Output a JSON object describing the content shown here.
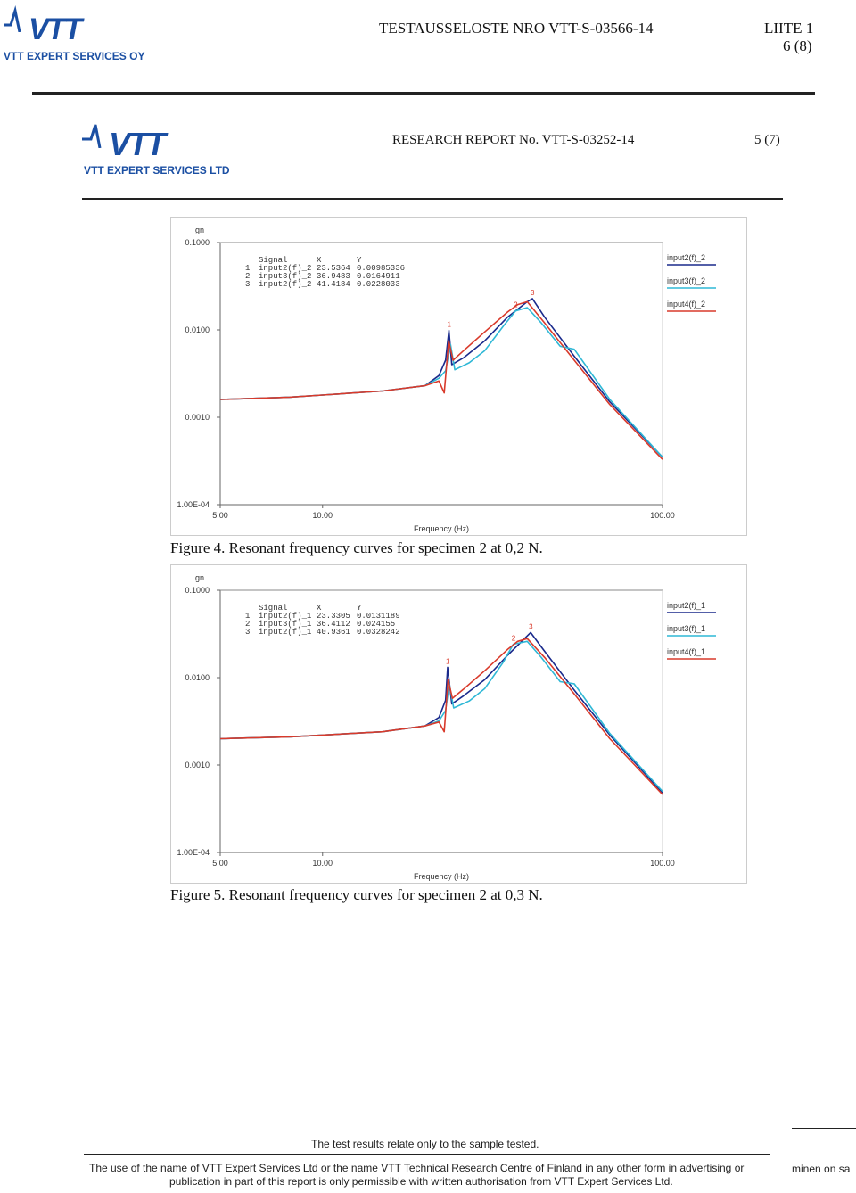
{
  "outer_header": {
    "logo_text": "VTT",
    "logo_sub": "VTT EXPERT SERVICES OY",
    "title": "TESTAUSSELOSTE NRO VTT-S-03566-14",
    "appendix": "LIITE 1",
    "page": "6 (8)"
  },
  "inner_header": {
    "logo_text": "VTT",
    "logo_sub": "VTT EXPERT SERVICES LTD",
    "title": "RESEARCH REPORT No. VTT-S-03252-14",
    "page": "5 (7)"
  },
  "colors": {
    "brand": "#1b4fa3",
    "series_blue": "#1a2a8c",
    "series_cyan": "#2fb8d6",
    "series_red": "#d93a2b"
  },
  "chart_data": [
    {
      "type": "line",
      "ylabel": "gn",
      "xlabel": "Frequency (Hz)",
      "x_scale": "log",
      "y_scale": "log",
      "xlim": [
        5,
        100
      ],
      "ylim": [
        0.0001,
        0.1
      ],
      "x_ticks": [
        "5.00",
        "10.00",
        "100.00"
      ],
      "y_ticks": [
        "0.1000",
        "0.0100",
        "0.0010",
        "1.00E-04"
      ],
      "cursor_table": {
        "headers": [
          "Signal",
          "X",
          "Y"
        ],
        "rows": [
          {
            "n": "1",
            "signal": "input2(f)_2",
            "x": "23.5364",
            "y": "0.00985336"
          },
          {
            "n": "2",
            "signal": "input3(f)_2",
            "x": "36.9483",
            "y": "0.0164911"
          },
          {
            "n": "3",
            "signal": "input2(f)_2",
            "x": "41.4184",
            "y": "0.0228033"
          }
        ]
      },
      "series": [
        {
          "name": "input2(f)_2",
          "color": "#1a2a8c",
          "x": [
            5,
            8,
            10,
            15,
            20,
            22,
            23,
            23.5364,
            24,
            26,
            30,
            35,
            40,
            41.4184,
            45,
            55,
            70,
            100
          ],
          "y": [
            0.0016,
            0.0017,
            0.0018,
            0.002,
            0.0023,
            0.003,
            0.0045,
            0.00985336,
            0.004,
            0.0048,
            0.0075,
            0.014,
            0.021,
            0.0228033,
            0.014,
            0.005,
            0.0015,
            0.00035
          ]
        },
        {
          "name": "input3(f)_2",
          "color": "#2fb8d6",
          "x": [
            5,
            8,
            10,
            15,
            20,
            22,
            23,
            23.8,
            24.5,
            27,
            30,
            34,
            36.9483,
            40,
            44,
            50,
            55,
            70,
            100
          ],
          "y": [
            0.0016,
            0.0017,
            0.0018,
            0.002,
            0.0023,
            0.0028,
            0.0034,
            0.0068,
            0.0035,
            0.0042,
            0.0058,
            0.011,
            0.0164911,
            0.018,
            0.012,
            0.0065,
            0.006,
            0.0016,
            0.00035
          ]
        },
        {
          "name": "input4(f)_2",
          "color": "#d93a2b",
          "x": [
            5,
            8,
            10,
            15,
            20,
            22,
            22.8,
            23.5,
            24.2,
            26,
            30,
            35,
            37.5,
            40,
            45,
            55,
            70,
            100
          ],
          "y": [
            0.0016,
            0.0017,
            0.0018,
            0.002,
            0.0023,
            0.0026,
            0.0019,
            0.0075,
            0.0045,
            0.0058,
            0.0095,
            0.016,
            0.0195,
            0.021,
            0.012,
            0.0045,
            0.0014,
            0.00033
          ]
        }
      ],
      "peak_labels": [
        {
          "text": "1",
          "x": 23.5364,
          "y": 0.00985336
        },
        {
          "text": "2",
          "x": 36.9483,
          "y": 0.0164911
        },
        {
          "text": "3",
          "x": 41.4184,
          "y": 0.0228033
        }
      ],
      "caption": "Figure 4. Resonant frequency curves for specimen 2 at 0,2 N."
    },
    {
      "type": "line",
      "ylabel": "gn",
      "xlabel": "Frequency (Hz)",
      "x_scale": "log",
      "y_scale": "log",
      "xlim": [
        5,
        100
      ],
      "ylim": [
        0.0001,
        0.1
      ],
      "x_ticks": [
        "5.00",
        "10.00",
        "100.00"
      ],
      "y_ticks": [
        "0.1000",
        "0.0100",
        "0.0010",
        "1.00E-04"
      ],
      "cursor_table": {
        "headers": [
          "Signal",
          "X",
          "Y"
        ],
        "rows": [
          {
            "n": "1",
            "signal": "input2(f)_1",
            "x": "23.3305",
            "y": "0.0131189"
          },
          {
            "n": "2",
            "signal": "input3(f)_1",
            "x": "36.4112",
            "y": "0.024155"
          },
          {
            "n": "3",
            "signal": "input2(f)_1",
            "x": "40.9361",
            "y": "0.0328242"
          }
        ]
      },
      "series": [
        {
          "name": "input2(f)_1",
          "color": "#1a2a8c",
          "x": [
            5,
            8,
            10,
            15,
            20,
            22,
            23,
            23.3305,
            24,
            26,
            30,
            35,
            40,
            40.9361,
            45,
            55,
            70,
            100
          ],
          "y": [
            0.002,
            0.0021,
            0.0022,
            0.0024,
            0.0028,
            0.0035,
            0.0055,
            0.0131189,
            0.005,
            0.0062,
            0.0095,
            0.018,
            0.03,
            0.0328242,
            0.02,
            0.0072,
            0.0022,
            0.00048
          ]
        },
        {
          "name": "input3(f)_1",
          "color": "#2fb8d6",
          "x": [
            5,
            8,
            10,
            15,
            20,
            22,
            23,
            23.6,
            24.3,
            27,
            30,
            34,
            36.4112,
            40,
            44,
            50,
            55,
            70,
            100
          ],
          "y": [
            0.002,
            0.0021,
            0.0022,
            0.0024,
            0.0028,
            0.0032,
            0.0042,
            0.0085,
            0.0045,
            0.0054,
            0.0075,
            0.015,
            0.024155,
            0.026,
            0.017,
            0.009,
            0.0085,
            0.0023,
            0.0005
          ]
        },
        {
          "name": "input4(f)_1",
          "color": "#d93a2b",
          "x": [
            5,
            8,
            10,
            15,
            20,
            22,
            22.8,
            23.4,
            24.1,
            26,
            30,
            35,
            37.5,
            40,
            45,
            55,
            70,
            100
          ],
          "y": [
            0.002,
            0.0021,
            0.0022,
            0.0024,
            0.0028,
            0.0031,
            0.0024,
            0.0095,
            0.0058,
            0.0074,
            0.012,
            0.021,
            0.026,
            0.028,
            0.017,
            0.0065,
            0.002,
            0.00046
          ]
        }
      ],
      "peak_labels": [
        {
          "text": "1",
          "x": 23.3305,
          "y": 0.0131189
        },
        {
          "text": "2",
          "x": 36.4112,
          "y": 0.024155
        },
        {
          "text": "3",
          "x": 40.9361,
          "y": 0.0328242
        }
      ],
      "caption": "Figure 5. Resonant frequency curves for specimen 2 at 0,3 N."
    }
  ],
  "footer": {
    "note": "The test results relate only to the sample tested.",
    "line1": "The use of  the name of VTT Expert Services Ltd or the name VTT Technical Research Centre of Finland  in any other form in advertising or",
    "line2": "publication in part of this report is only permissible with written authorisation from VTT Expert Services Ltd.",
    "cut_text": "minen on sa"
  }
}
